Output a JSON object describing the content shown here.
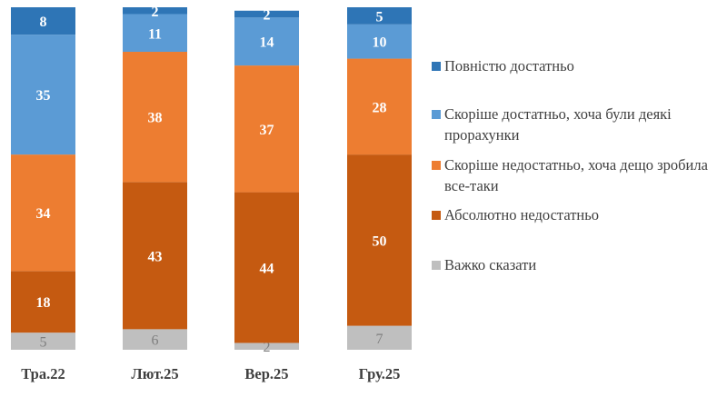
{
  "chart_data": {
    "type": "bar",
    "stacked": true,
    "categories": [
      "Тра.22",
      "Лют.25",
      "Вер.25",
      "Гру.25"
    ],
    "series": [
      {
        "name": "Повністю достатньо",
        "color": "#2e75b6",
        "values": [
          8,
          2,
          2,
          5
        ]
      },
      {
        "name": "Скоріше достатньо, хоча були деякі прорахунки",
        "color": "#5b9bd5",
        "values": [
          35,
          11,
          14,
          10
        ]
      },
      {
        "name": "Скоріше недостатньо, хоча дещо зробила все-таки",
        "color": "#ed7d31",
        "values": [
          34,
          38,
          37,
          28
        ]
      },
      {
        "name": "Абсолютно недостатньо",
        "color": "#c55a11",
        "values": [
          18,
          43,
          44,
          50
        ]
      },
      {
        "name": "Важко сказати",
        "color": "#bfbfbf",
        "values": [
          5,
          6,
          2,
          7
        ]
      }
    ],
    "ylim": [
      0,
      100
    ],
    "legend_position": "right",
    "grid": false,
    "title": "",
    "xlabel": "",
    "ylabel": ""
  }
}
